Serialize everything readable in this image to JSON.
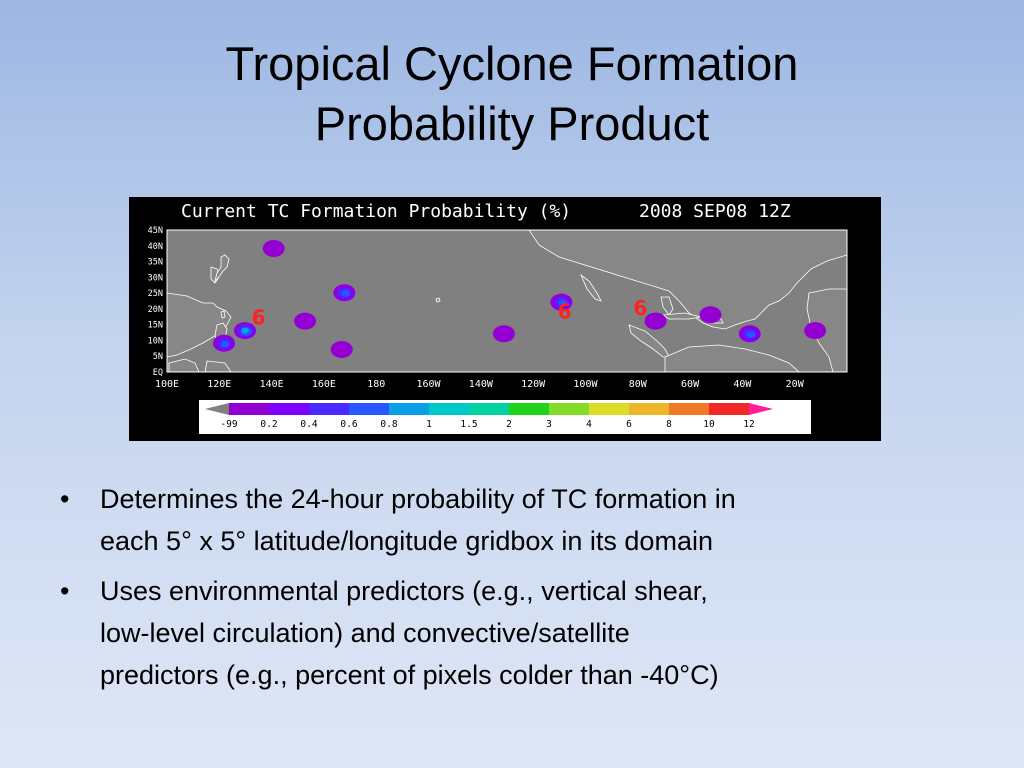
{
  "slide": {
    "title_lines": [
      "Tropical Cyclone Formation",
      "Probability Product"
    ]
  },
  "figure": {
    "header_left": "Current TC Formation Probability (%)",
    "header_right": "2008 SEP08 12Z",
    "latitude_labels": [
      "45N",
      "40N",
      "35N",
      "30N",
      "25N",
      "20N",
      "15N",
      "10N",
      "5N",
      "EQ"
    ],
    "longitude_labels": [
      "100E",
      "120E",
      "140E",
      "160E",
      "180",
      "160W",
      "140W",
      "120W",
      "100W",
      "80W",
      "60W",
      "40W",
      "20W"
    ],
    "storm_markers": [
      "6",
      "6",
      "6"
    ],
    "colorbar": {
      "labels": [
        "-99",
        "0.2",
        "0.4",
        "0.6",
        "0.8",
        "1",
        "1.5",
        "2",
        "3",
        "4",
        "6",
        "8",
        "10",
        "12"
      ],
      "colors": [
        "#808080",
        "#9400d3",
        "#8000ff",
        "#4b28ff",
        "#2a56ff",
        "#0aa0e6",
        "#00c8c8",
        "#00d2a0",
        "#1ed21e",
        "#82dc28",
        "#dcdc28",
        "#f0b428",
        "#f07828",
        "#f02828",
        "#ff1e96"
      ],
      "background": "#ffffff"
    },
    "colors": {
      "background": "#000000",
      "ocean": "#808080",
      "land": "#878787",
      "coastline": "#ffffff",
      "marker": "#ff2020"
    },
    "probability_blobs": [
      {
        "lon": 130,
        "lat": 13,
        "peak": "1"
      },
      {
        "lon": 122,
        "lat": 9,
        "peak": "0.8"
      },
      {
        "lon": 168,
        "lat": 25,
        "peak": "0.8"
      },
      {
        "lon": 141,
        "lat": 39,
        "peak": "0.2"
      },
      {
        "lon": 153,
        "lat": 16,
        "peak": "0.2"
      },
      {
        "lon": 167,
        "lat": 7,
        "peak": "0.2"
      },
      {
        "lon": -109,
        "lat": 22,
        "peak": "0.8"
      },
      {
        "lon": -131,
        "lat": 12,
        "peak": "0.2"
      },
      {
        "lon": -73,
        "lat": 16,
        "peak": "0.2"
      },
      {
        "lon": -52,
        "lat": 18,
        "peak": "0.2"
      },
      {
        "lon": -37,
        "lat": 12,
        "peak": "0.8"
      },
      {
        "lon": -12,
        "lat": 13,
        "peak": "0.2"
      }
    ]
  },
  "bullets": [
    {
      "lines": [
        "Determines the 24-hour probability of TC formation in",
        "each 5° x 5° latitude/longitude gridbox in its domain"
      ]
    },
    {
      "lines": [
        "Uses environmental predictors (e.g., vertical shear,",
        "low-level circulation) and convective/satellite",
        "predictors (e.g., percent of pixels colder than -40°C)"
      ]
    }
  ]
}
